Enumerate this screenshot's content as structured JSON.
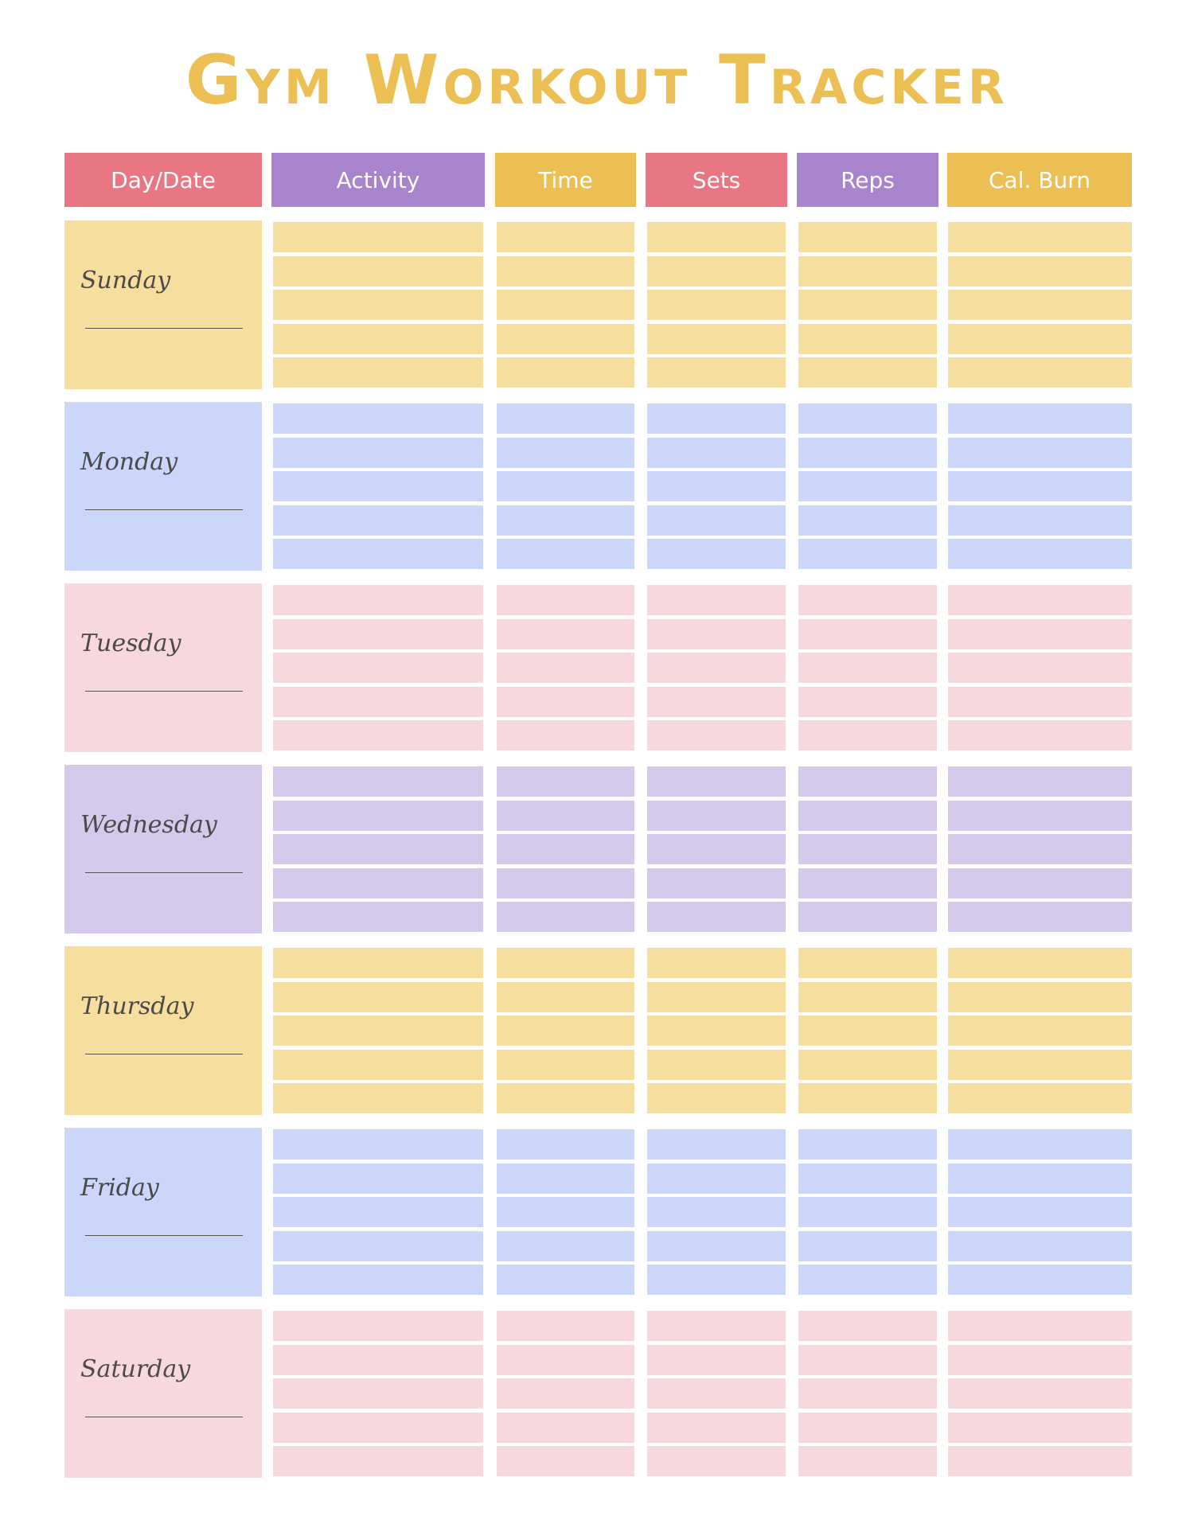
{
  "title": "Gym Workout Tracker",
  "colors": {
    "title": "#ECBF55",
    "pink_header": "#E97683",
    "purple_header": "#A784CC",
    "yellow_header": "#ECBF55",
    "row_yellow": "#F6DE9E",
    "row_blue": "#CAD7FB",
    "row_pink": "#F7D9DD",
    "row_purple": "#D5CAEC"
  },
  "columns": [
    {
      "key": "day_date",
      "label": "Day/Date",
      "color": "#E97683"
    },
    {
      "key": "activity",
      "label": "Activity",
      "color": "#A784CC"
    },
    {
      "key": "time",
      "label": "Time",
      "color": "#ECBF55"
    },
    {
      "key": "sets",
      "label": "Sets",
      "color": "#E97683"
    },
    {
      "key": "reps",
      "label": "Reps",
      "color": "#A784CC"
    },
    {
      "key": "cal_burn",
      "label": "Cal. Burn",
      "color": "#ECBF55"
    }
  ],
  "days": [
    {
      "name": "Sunday",
      "color": "#F6DE9E"
    },
    {
      "name": "Monday",
      "color": "#CAD7FB"
    },
    {
      "name": "Tuesday",
      "color": "#F7D9DD"
    },
    {
      "name": "Wednesday",
      "color": "#D5CAEC"
    },
    {
      "name": "Thursday",
      "color": "#F6DE9E"
    },
    {
      "name": "Friday",
      "color": "#CAD7FB"
    },
    {
      "name": "Saturday",
      "color": "#F7D9DD"
    }
  ]
}
